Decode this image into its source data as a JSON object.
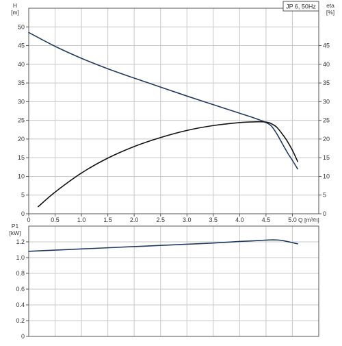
{
  "chart_data": [
    {
      "type": "line",
      "title": "JP 6, 50Hz",
      "xlabel": "Q [m³/h]",
      "ylabel": "H",
      "ylabel_unit": "[m]",
      "y2label": "eta",
      "y2label_unit": "[%]",
      "xlim": [
        0,
        5.5
      ],
      "ylim": [
        0,
        55
      ],
      "y2lim": [
        0,
        55
      ],
      "x_ticks": [
        "0",
        "0.5",
        "1.0",
        "1.5",
        "2.0",
        "2.5",
        "3.0",
        "3.5",
        "4.0",
        "4.5",
        "5.0"
      ],
      "y_ticks": [
        "0",
        "5",
        "10",
        "15",
        "20",
        "25",
        "30",
        "35",
        "40",
        "45",
        "50"
      ],
      "y2_ticks": [
        "0",
        "5",
        "10",
        "15",
        "20",
        "25",
        "30",
        "35",
        "40",
        "45"
      ],
      "grid": true,
      "series": [
        {
          "axis": "left",
          "color": "#1f3a5f",
          "x": [
            0,
            0.5,
            1.0,
            1.5,
            2.0,
            2.5,
            3.0,
            3.5,
            4.0,
            4.3,
            4.5,
            4.6,
            4.7,
            4.8,
            4.9,
            5.0,
            5.1
          ],
          "y": [
            48.5,
            44.8,
            41.6,
            38.8,
            36.3,
            33.9,
            31.5,
            29.2,
            26.9,
            25.5,
            24.4,
            23.5,
            21.5,
            19.0,
            16.5,
            14.3,
            12.0
          ]
        },
        {
          "axis": "right",
          "color": "#111111",
          "x": [
            0.18,
            0.5,
            1.0,
            1.5,
            2.0,
            2.5,
            3.0,
            3.5,
            4.0,
            4.3,
            4.45,
            4.55,
            4.6,
            4.7,
            4.8,
            4.9,
            5.0,
            5.1
          ],
          "y": [
            1.9,
            5.8,
            10.9,
            14.9,
            18.0,
            20.4,
            22.3,
            23.6,
            24.4,
            24.6,
            24.6,
            24.4,
            24.1,
            23.2,
            21.5,
            19.5,
            17.0,
            14.0
          ]
        }
      ]
    },
    {
      "type": "line",
      "ylabel": "P1",
      "ylabel_unit": "[kW]",
      "xlim": [
        0,
        5.5
      ],
      "ylim": [
        0,
        1.4
      ],
      "y_ticks": [
        "0",
        "0.2",
        "0.4",
        "0.6",
        "0.8",
        "1.0",
        "1.2"
      ],
      "grid": true,
      "series": [
        {
          "axis": "left",
          "color": "#1f3a5f",
          "x": [
            0,
            0.5,
            1.0,
            1.5,
            2.0,
            2.5,
            3.0,
            3.5,
            4.0,
            4.3,
            4.5,
            4.6,
            4.7,
            4.8,
            4.9,
            5.0,
            5.1
          ],
          "y": [
            1.08,
            1.095,
            1.11,
            1.125,
            1.14,
            1.155,
            1.17,
            1.185,
            1.205,
            1.215,
            1.222,
            1.225,
            1.224,
            1.218,
            1.205,
            1.19,
            1.175
          ]
        }
      ]
    }
  ]
}
